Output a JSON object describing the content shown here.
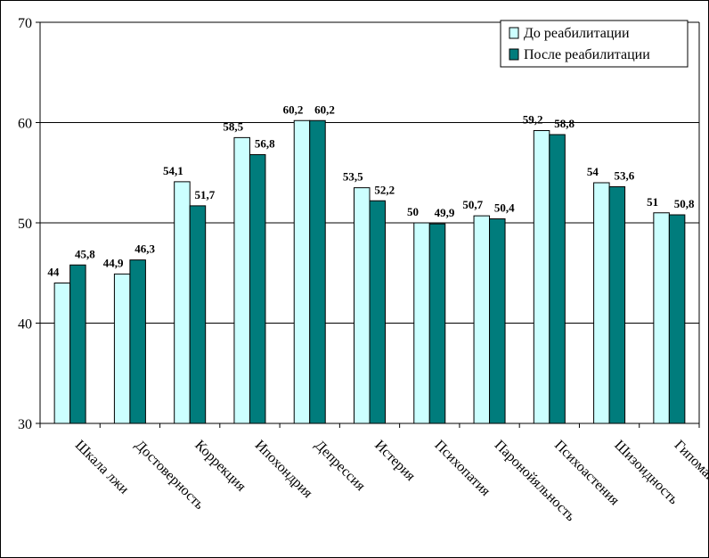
{
  "chart_data": {
    "type": "bar",
    "categories": [
      "Шкала лжи",
      "Достоверность",
      "Коррекция",
      "Ипохондрия",
      "Депрессия",
      "Истерия",
      "Психопатия",
      "Паронойяльность",
      "Психоастения",
      "Шизоидность",
      "Гипомания"
    ],
    "series": [
      {
        "name": "До реабилитации",
        "values": [
          44,
          44.9,
          54.1,
          58.5,
          60.2,
          53.5,
          50,
          50.7,
          59.2,
          54,
          51
        ],
        "labels": [
          "44",
          "44,9",
          "54,1",
          "58,5",
          "60,2",
          "53,5",
          "50",
          "50,7",
          "59,2",
          "54",
          "51"
        ],
        "color": "#ccffff"
      },
      {
        "name": "После реабилитации",
        "values": [
          45.8,
          46.3,
          51.7,
          56.8,
          60.2,
          52.2,
          49.9,
          50.4,
          58.8,
          53.6,
          50.8
        ],
        "labels": [
          "45,8",
          "46,3",
          "51,7",
          "56,8",
          "60,2",
          "52,2",
          "49,9",
          "50,4",
          "58,8",
          "53,6",
          "50,8"
        ],
        "color": "#007c7c"
      }
    ],
    "ylim": [
      30,
      70
    ],
    "yticks": [
      "30",
      "40",
      "50",
      "60",
      "70"
    ],
    "title": "",
    "xlabel": "",
    "ylabel": "",
    "grid": true,
    "legend_position": "top-right"
  }
}
